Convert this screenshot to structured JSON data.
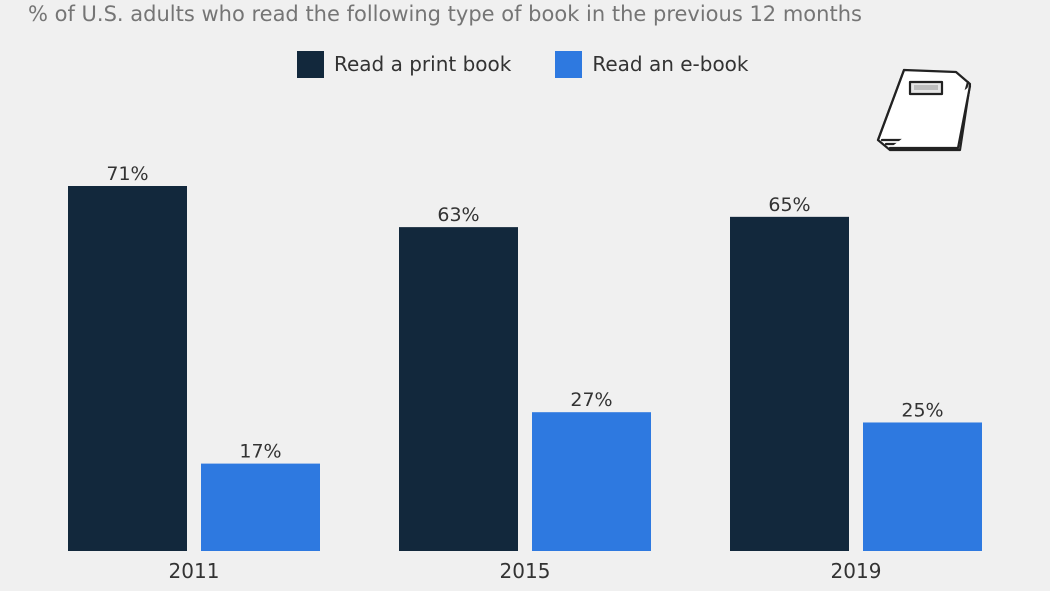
{
  "subtitle": "% of U.S. adults who read the following type of book in the previous 12 months",
  "legend": [
    {
      "label": "Read a print book",
      "color": "#12283c"
    },
    {
      "label": "Read an e-book",
      "color": "#2e79e0"
    }
  ],
  "icon": "book-icon",
  "chart_data": {
    "type": "bar",
    "categories": [
      "2011",
      "2015",
      "2019"
    ],
    "series": [
      {
        "name": "Read a print book",
        "values": [
          71,
          63,
          65
        ],
        "labels": [
          "71%",
          "63%",
          "65%"
        ],
        "color": "#12283c"
      },
      {
        "name": "Read an e-book",
        "values": [
          17,
          27,
          25
        ],
        "labels": [
          "17%",
          "27%",
          "25%"
        ],
        "color": "#2e79e0"
      }
    ],
    "title": "",
    "xlabel": "",
    "ylabel": "",
    "ylim": [
      0,
      71
    ],
    "grid": false,
    "legend_position": "top-center"
  }
}
